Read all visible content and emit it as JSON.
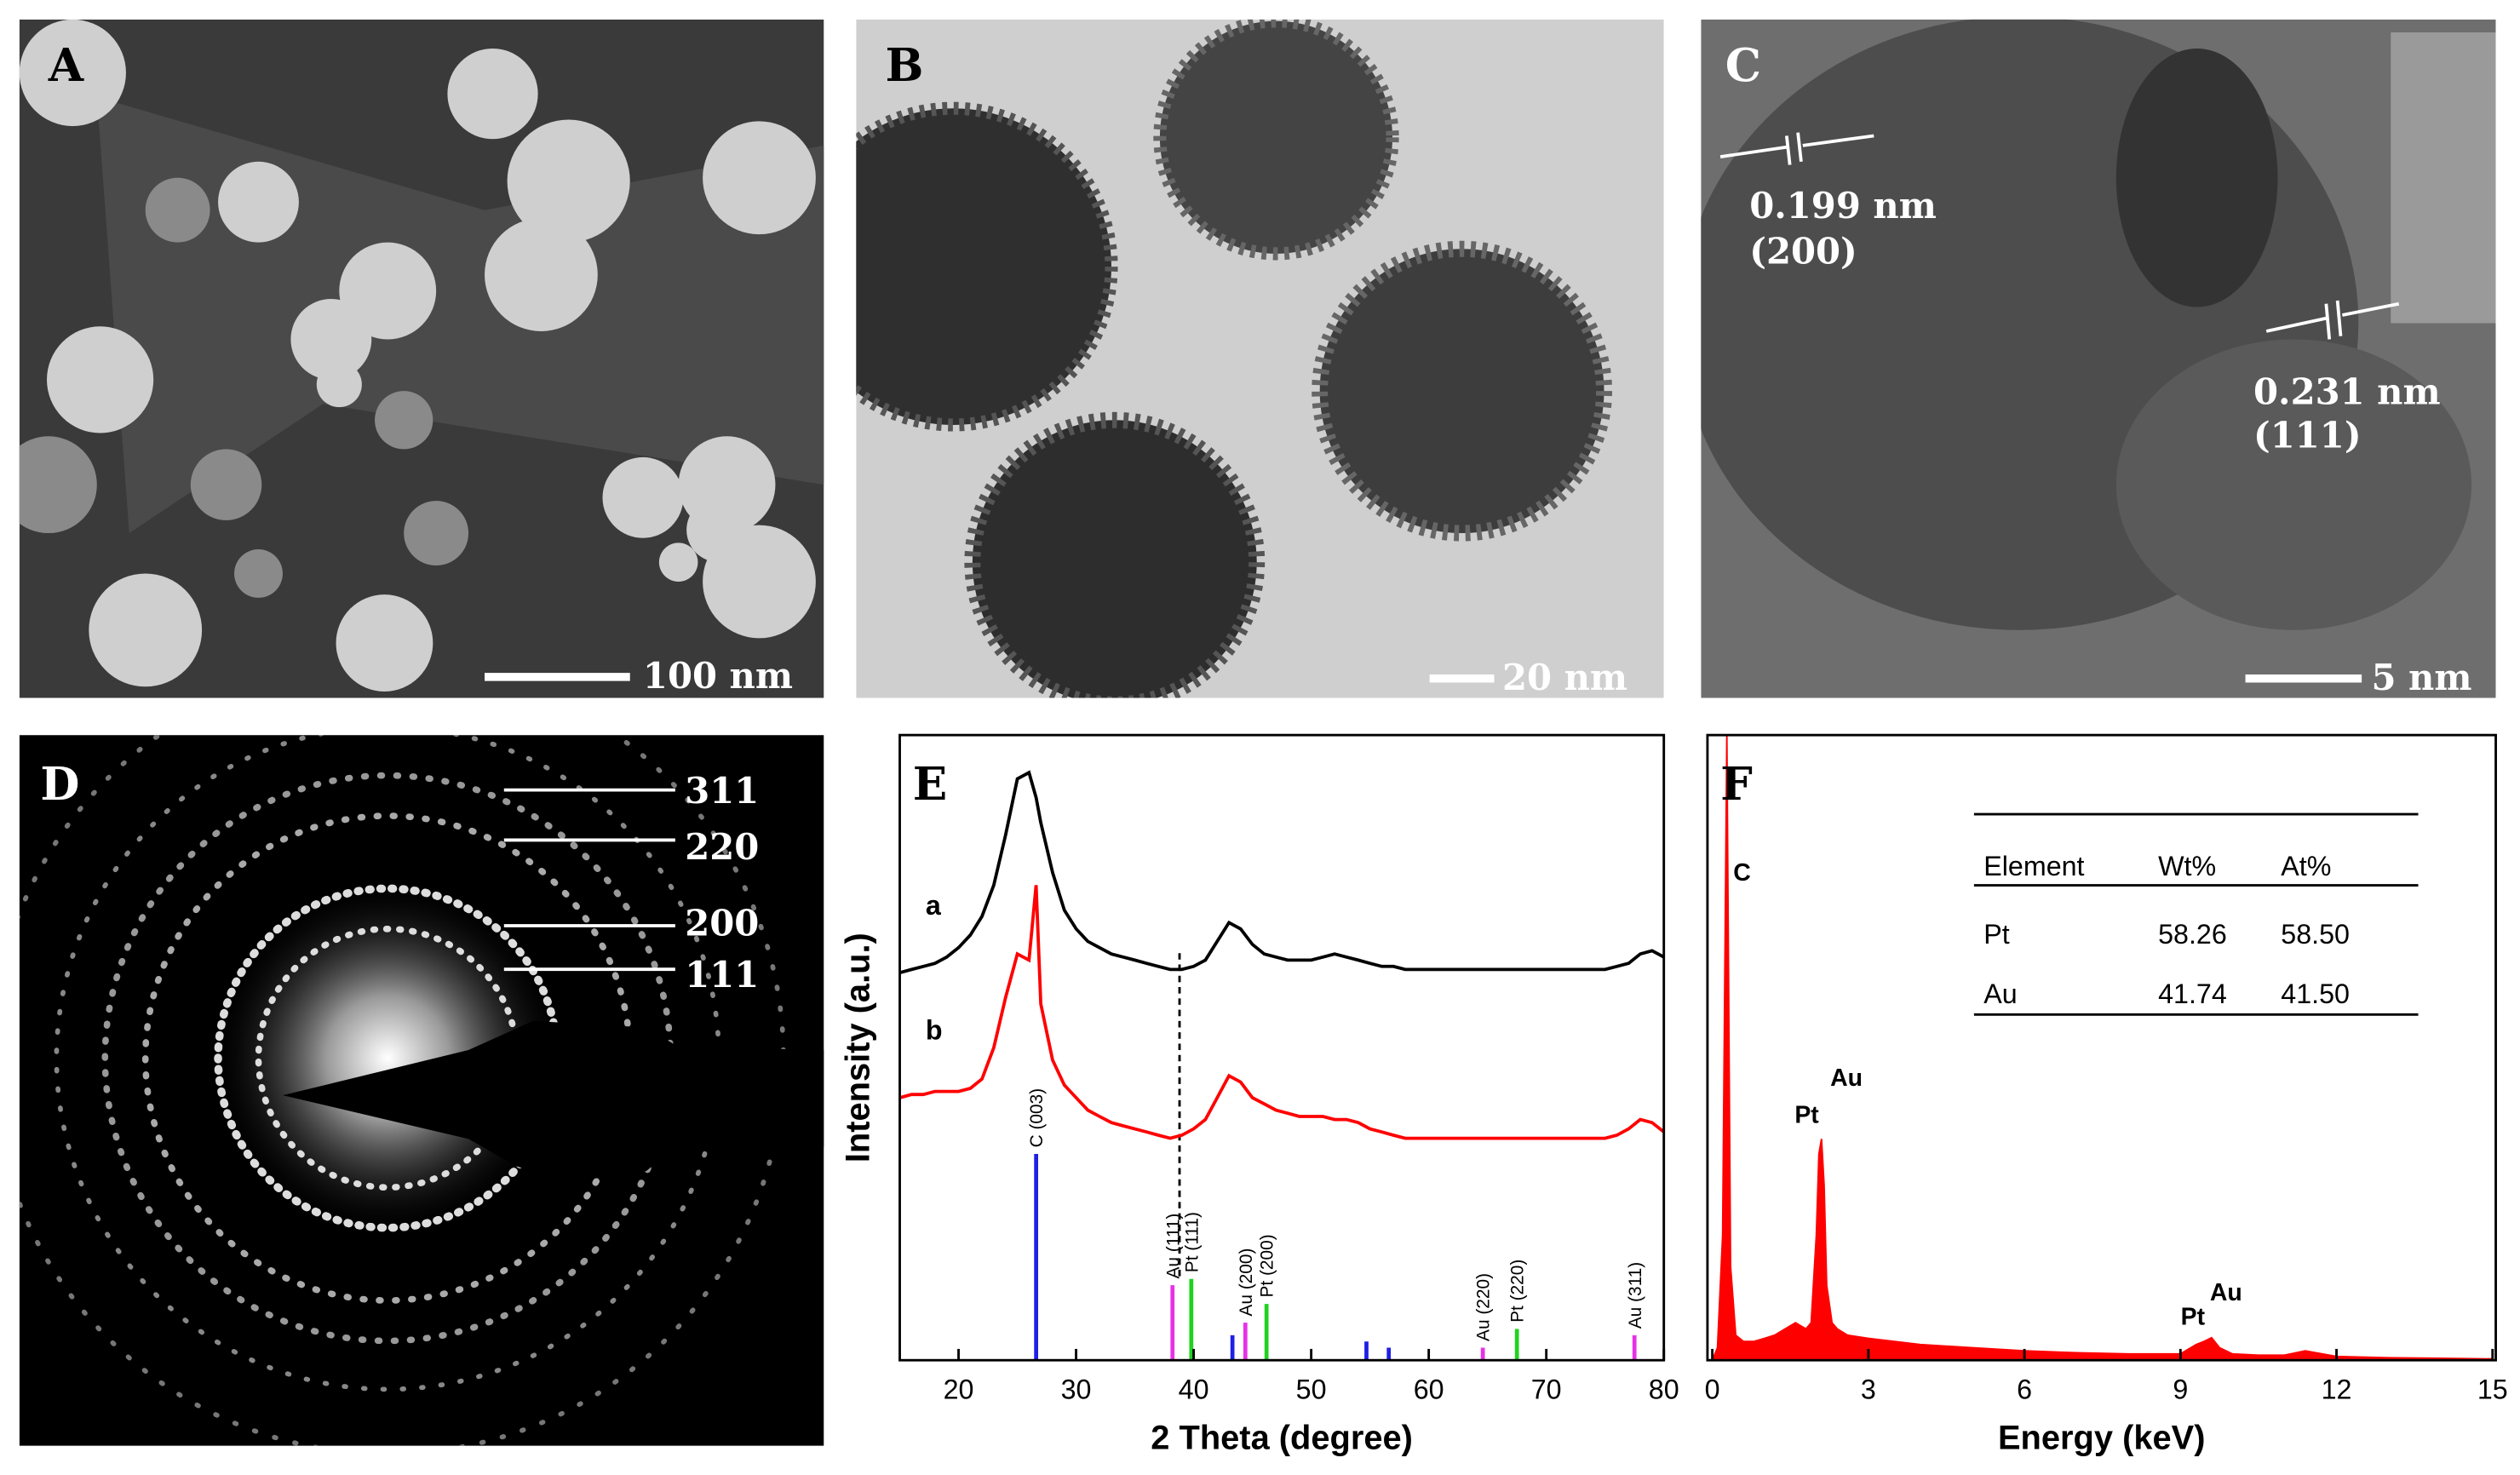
{
  "micrographs": {
    "A": {
      "label": "A",
      "scale_bar": "100 nm"
    },
    "B": {
      "label": "B",
      "scale_bar": "20 nm"
    },
    "C": {
      "label": "C",
      "scale_bar": "5 nm",
      "spacings": [
        "0.199 nm",
        "(200)",
        "0.231 nm",
        "(111)"
      ]
    },
    "D": {
      "label": "D",
      "rings": [
        "311",
        "220",
        "200",
        "111"
      ]
    }
  },
  "chart_data": [
    {
      "type": "line",
      "title": "E",
      "xlabel": "2 Theta (degree)",
      "ylabel": "Intensity (a.u.)",
      "xlim": [
        15,
        80
      ],
      "ylim": [
        0,
        100
      ],
      "xticks": [
        20,
        30,
        40,
        50,
        60,
        70,
        80
      ],
      "dashed_line_x": 38.8,
      "x": [
        15,
        16,
        17,
        18,
        19,
        20,
        21,
        22,
        23,
        24,
        25,
        26,
        26.6,
        27,
        28,
        29,
        30,
        31,
        32,
        33,
        34,
        35,
        36,
        37,
        38,
        39,
        40,
        41,
        42,
        43,
        44,
        45,
        46,
        47,
        48,
        49,
        50,
        51,
        52,
        53,
        54,
        55,
        56,
        57,
        58,
        59,
        60,
        61,
        62,
        63,
        64,
        65,
        66,
        67,
        68,
        69,
        70,
        71,
        72,
        73,
        74,
        75,
        76,
        77,
        78,
        79,
        80
      ],
      "series": [
        {
          "name": "a",
          "color": "#000000",
          "values": [
            62,
            62.5,
            63,
            63.5,
            64.5,
            66,
            68,
            71,
            76,
            84,
            93,
            94,
            90,
            86,
            78,
            72,
            69,
            67,
            66,
            65,
            64.5,
            64,
            63.5,
            63,
            62.5,
            62.5,
            63,
            64,
            67,
            70,
            69,
            66.5,
            65,
            64.5,
            64,
            64,
            64,
            64.5,
            65,
            64.5,
            64,
            63.5,
            63,
            63,
            62.5,
            62.5,
            62.5,
            62.5,
            62.5,
            62.5,
            62.5,
            62.5,
            62.5,
            62.5,
            62.5,
            62.5,
            62.5,
            62.5,
            62.5,
            62.5,
            62.5,
            62.5,
            63,
            63.5,
            65,
            65.5,
            64.5
          ]
        },
        {
          "name": "b",
          "color": "#ff0000",
          "values": [
            42,
            42.5,
            42.5,
            43,
            43,
            43,
            43.5,
            45,
            50,
            58,
            65,
            64,
            76,
            57,
            48,
            44,
            42,
            40,
            39,
            38,
            37.5,
            37,
            36.5,
            36,
            35.5,
            36,
            37,
            38.5,
            42,
            45.5,
            44.5,
            42,
            41,
            40,
            39.5,
            39,
            39,
            39,
            38.5,
            38.5,
            38,
            37,
            36.5,
            36,
            35.5,
            35.5,
            35.5,
            35.5,
            35.5,
            35.5,
            35.5,
            35.5,
            35.5,
            35.5,
            35.5,
            35.5,
            35.5,
            35.5,
            35.5,
            35.5,
            35.5,
            35.5,
            36,
            37,
            38.5,
            38,
            36.5
          ]
        }
      ],
      "references": [
        {
          "color": "#1f1fe6",
          "x": [
            26.6,
            43.3,
            54.7,
            56.6
          ],
          "values": [
            33,
            4,
            3,
            2
          ],
          "labels": [
            "C (003)",
            null,
            null,
            null
          ]
        },
        {
          "color": "#e632e6",
          "x": [
            38.2,
            44.4,
            64.6,
            77.5
          ],
          "values": [
            12,
            6,
            2,
            4
          ],
          "labels": [
            "Au (111)",
            "Au (200)",
            "Au (220)",
            "Au (311)"
          ]
        },
        {
          "color": "#1fd21f",
          "x": [
            39.8,
            46.2,
            67.5
          ],
          "values": [
            13,
            9,
            5
          ],
          "labels": [
            "Pt (111)",
            "Pt (200)",
            "Pt (220)"
          ]
        }
      ]
    },
    {
      "type": "area",
      "title": "F",
      "xlabel": "Energy (keV)",
      "color": "#ff0000",
      "xlim": [
        0,
        15
      ],
      "ylim": [
        0,
        100
      ],
      "xticks": [
        0,
        3,
        6,
        9,
        12,
        15
      ],
      "x": [
        0,
        0.1,
        0.2,
        0.28,
        0.35,
        0.45,
        0.6,
        0.8,
        1.0,
        1.2,
        1.4,
        1.6,
        1.7,
        1.8,
        1.9,
        2.0,
        2.05,
        2.1,
        2.15,
        2.2,
        2.3,
        2.4,
        2.6,
        3.0,
        3.5,
        4,
        5,
        6,
        7,
        8,
        9,
        9.3,
        9.45,
        9.6,
        9.75,
        10,
        10.5,
        11,
        11.4,
        11.6,
        12,
        13,
        14,
        15
      ],
      "values": [
        0,
        2,
        20,
        100,
        15,
        4,
        3,
        3,
        3.5,
        4,
        5,
        6,
        5.5,
        5,
        6,
        20,
        33,
        35.4,
        28,
        12,
        6,
        5,
        4,
        3.5,
        3,
        2.5,
        2,
        1.5,
        1.2,
        1,
        1,
        2.5,
        3,
        3.6,
        2,
        1,
        0.8,
        0.8,
        1.5,
        1.2,
        0.6,
        0.4,
        0.3,
        0.2
      ],
      "annotations": [
        "C",
        "Pt",
        "Au",
        "Pt",
        "Au"
      ],
      "table": {
        "columns": [
          "Element",
          "Wt%",
          "At%"
        ],
        "rows": [
          [
            "Pt",
            "58.26",
            "58.50"
          ],
          [
            "Au",
            "41.74",
            "41.50"
          ]
        ]
      }
    }
  ]
}
